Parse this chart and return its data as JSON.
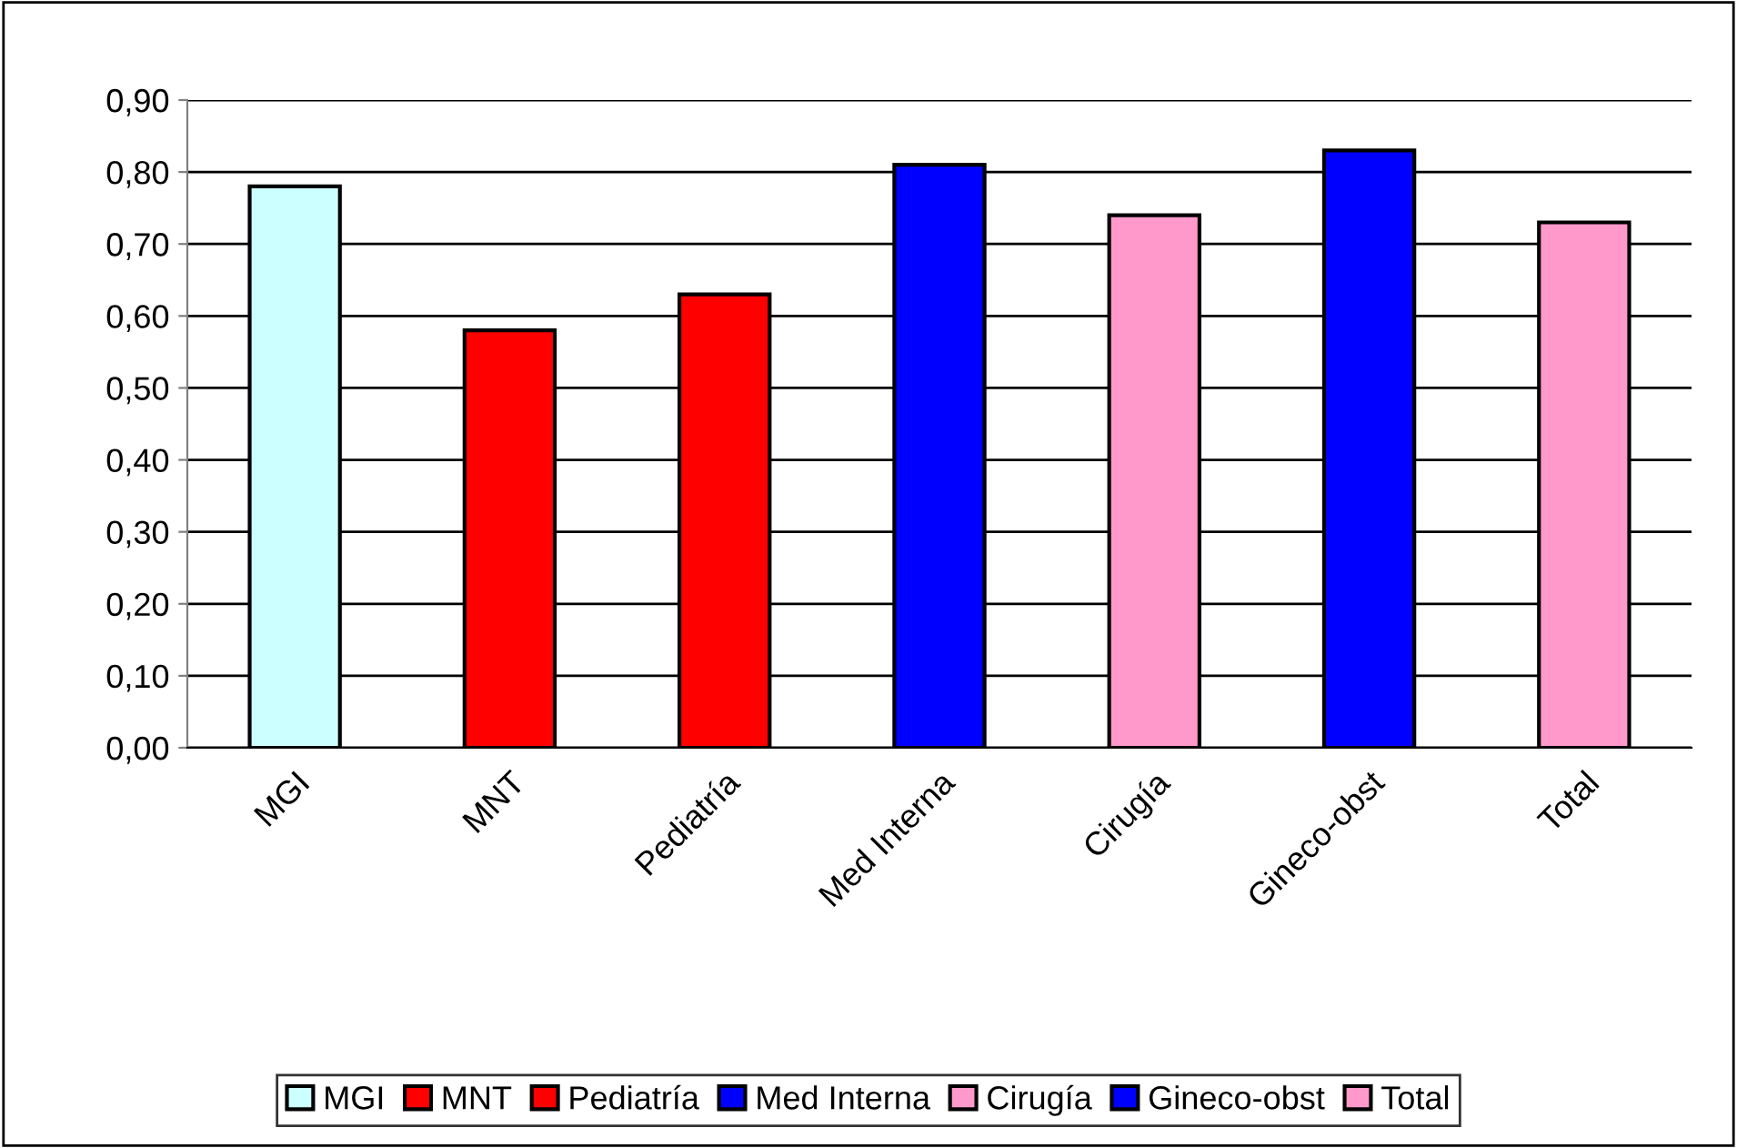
{
  "chart_data": {
    "type": "bar",
    "categories": [
      "MGI",
      "MNT",
      "Pediatría",
      "Med Interna",
      "Cirugía",
      "Gineco-obst",
      "Total"
    ],
    "series": [
      {
        "name": "MGI",
        "color": "#ccffff",
        "values": [
          0.78,
          null,
          null,
          null,
          null,
          null,
          null
        ]
      },
      {
        "name": "MNT",
        "color": "#ff0000",
        "values": [
          null,
          0.58,
          null,
          null,
          null,
          null,
          null
        ]
      },
      {
        "name": "Pediatría",
        "color": "#ff0000",
        "values": [
          null,
          null,
          0.63,
          null,
          null,
          null,
          null
        ]
      },
      {
        "name": "Med Interna",
        "color": "#0000ff",
        "values": [
          null,
          null,
          null,
          0.81,
          null,
          null,
          null
        ]
      },
      {
        "name": "Cirugía",
        "color": "#ff99cc",
        "values": [
          null,
          null,
          null,
          null,
          0.74,
          null,
          null
        ]
      },
      {
        "name": "Gineco-obst",
        "color": "#0000ff",
        "values": [
          null,
          null,
          null,
          null,
          null,
          0.83,
          null
        ]
      },
      {
        "name": "Total",
        "color": "#ff99cc",
        "values": [
          null,
          null,
          null,
          null,
          null,
          null,
          0.73
        ]
      }
    ],
    "ylim": [
      0,
      0.9
    ],
    "yticks": [
      {
        "value": 0,
        "label": "0,00"
      },
      {
        "value": 0.1,
        "label": "0,10"
      },
      {
        "value": 0.2,
        "label": "0,20"
      },
      {
        "value": 0.3,
        "label": "0,30"
      },
      {
        "value": 0.4,
        "label": "0,40"
      },
      {
        "value": 0.5,
        "label": "0,50"
      },
      {
        "value": 0.6,
        "label": "0,60"
      },
      {
        "value": 0.7,
        "label": "0,70"
      },
      {
        "value": 0.8,
        "label": "0,80"
      },
      {
        "value": 0.9,
        "label": "0,90"
      }
    ],
    "grid": "y",
    "legend": "bottom"
  }
}
